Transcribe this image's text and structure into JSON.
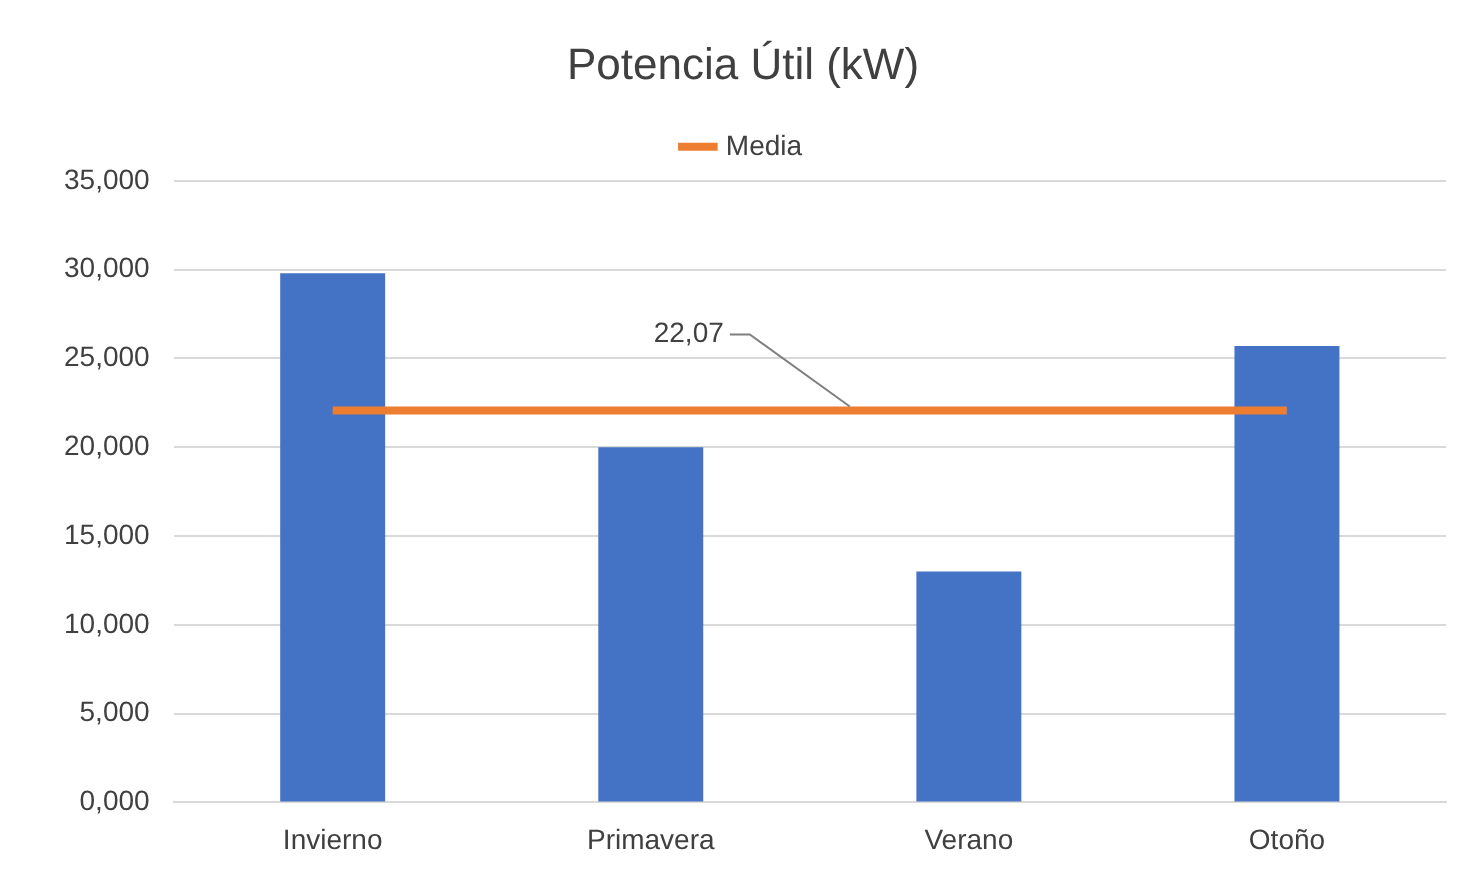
{
  "chart_data": {
    "type": "bar",
    "title": "Potencia Útil (kW)",
    "categories": [
      "Invierno",
      "Primavera",
      "Verano",
      "Otoño"
    ],
    "series": [
      {
        "color": "#4472c4",
        "values": [
          29.8,
          20.0,
          13.0,
          25.7
        ]
      },
      {
        "type": "line",
        "name": "Media",
        "color": "#ed7d31",
        "values": [
          22.07,
          22.07,
          22.07,
          22.07
        ]
      }
    ],
    "ylim": [
      0,
      35
    ],
    "yticks": [
      {
        "value": 0,
        "label": "0,000"
      },
      {
        "value": 5,
        "label": "5,000"
      },
      {
        "value": 10,
        "label": "10,000"
      },
      {
        "value": 15,
        "label": "15,000"
      },
      {
        "value": 20,
        "label": "20,000"
      },
      {
        "value": 25,
        "label": "25,000"
      },
      {
        "value": 30,
        "label": "30,000"
      },
      {
        "value": 35,
        "label": "35,000"
      }
    ],
    "grid": "y",
    "legend": "top",
    "marker": "none",
    "annotations": [
      {
        "text": "22,07",
        "y": 22.07
      }
    ]
  }
}
